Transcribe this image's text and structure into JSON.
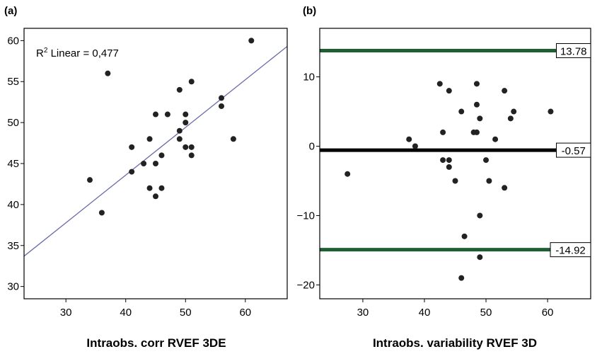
{
  "chart_data": [
    {
      "type": "scatter",
      "panel_label": "(a)",
      "xlabel": "Intraobs. corr RVEF 3DE",
      "ylabel": "",
      "xlim": [
        23,
        67
      ],
      "ylim": [
        28.5,
        61.5
      ],
      "xticks": [
        30,
        40,
        50,
        60
      ],
      "yticks": [
        30,
        35,
        40,
        45,
        50,
        55,
        60
      ],
      "annotation": {
        "prefix": "R",
        "sup": "2",
        "text": " Linear = 0,477"
      },
      "fit_line": {
        "x": [
          23,
          67
        ],
        "y": [
          33.7,
          59.3
        ],
        "color": "#6b6baa"
      },
      "points": [
        {
          "x": 37,
          "y": 56
        },
        {
          "x": 61,
          "y": 60
        },
        {
          "x": 34,
          "y": 43
        },
        {
          "x": 36,
          "y": 39
        },
        {
          "x": 41,
          "y": 47
        },
        {
          "x": 41,
          "y": 44
        },
        {
          "x": 43,
          "y": 45
        },
        {
          "x": 44,
          "y": 48
        },
        {
          "x": 44,
          "y": 42
        },
        {
          "x": 45,
          "y": 45
        },
        {
          "x": 45,
          "y": 41
        },
        {
          "x": 45,
          "y": 51
        },
        {
          "x": 46,
          "y": 46
        },
        {
          "x": 46,
          "y": 42
        },
        {
          "x": 47,
          "y": 51
        },
        {
          "x": 49,
          "y": 54
        },
        {
          "x": 49,
          "y": 49
        },
        {
          "x": 49,
          "y": 48
        },
        {
          "x": 50,
          "y": 51
        },
        {
          "x": 50,
          "y": 50
        },
        {
          "x": 50,
          "y": 47
        },
        {
          "x": 51,
          "y": 55
        },
        {
          "x": 51,
          "y": 47
        },
        {
          "x": 51,
          "y": 46
        },
        {
          "x": 56,
          "y": 53
        },
        {
          "x": 56,
          "y": 52
        },
        {
          "x": 58,
          "y": 48
        }
      ]
    },
    {
      "type": "scatter",
      "panel_label": "(b)",
      "xlabel": "Intraobs. variability RVEF 3D",
      "ylabel": "",
      "xlim": [
        23,
        67
      ],
      "ylim": [
        -22,
        17
      ],
      "xticks": [
        30,
        40,
        50,
        60
      ],
      "yticks": [
        -20,
        -10,
        0,
        10
      ],
      "yticklabels": [
        "−20",
        "−10",
        "0",
        "10"
      ],
      "reference_lines": [
        {
          "value": 13.78,
          "label": "13.78",
          "color": "#1e5e32"
        },
        {
          "value": -0.57,
          "label": "-0.57",
          "color": "#000000"
        },
        {
          "value": -14.92,
          "label": "-14.92",
          "color": "#1e5e32"
        }
      ],
      "zero_line_color": "#d49a9a",
      "points": [
        {
          "x": 27.5,
          "y": -4
        },
        {
          "x": 37.5,
          "y": 1
        },
        {
          "x": 38.5,
          "y": 0
        },
        {
          "x": 42.5,
          "y": 9
        },
        {
          "x": 43,
          "y": 2
        },
        {
          "x": 43,
          "y": -2
        },
        {
          "x": 44,
          "y": 8
        },
        {
          "x": 44,
          "y": -2
        },
        {
          "x": 44,
          "y": -3
        },
        {
          "x": 45,
          "y": -5
        },
        {
          "x": 46,
          "y": 5
        },
        {
          "x": 46,
          "y": -19
        },
        {
          "x": 46.5,
          "y": -13
        },
        {
          "x": 48,
          "y": 2
        },
        {
          "x": 48.5,
          "y": 2
        },
        {
          "x": 48.5,
          "y": 9
        },
        {
          "x": 48.5,
          "y": 6
        },
        {
          "x": 49,
          "y": 4
        },
        {
          "x": 49,
          "y": -10
        },
        {
          "x": 49,
          "y": -16
        },
        {
          "x": 50,
          "y": -2
        },
        {
          "x": 50.5,
          "y": -5
        },
        {
          "x": 51.5,
          "y": 1
        },
        {
          "x": 53,
          "y": 8
        },
        {
          "x": 53,
          "y": -6
        },
        {
          "x": 54,
          "y": 4
        },
        {
          "x": 54.5,
          "y": 5
        },
        {
          "x": 60.5,
          "y": 5
        }
      ]
    }
  ]
}
